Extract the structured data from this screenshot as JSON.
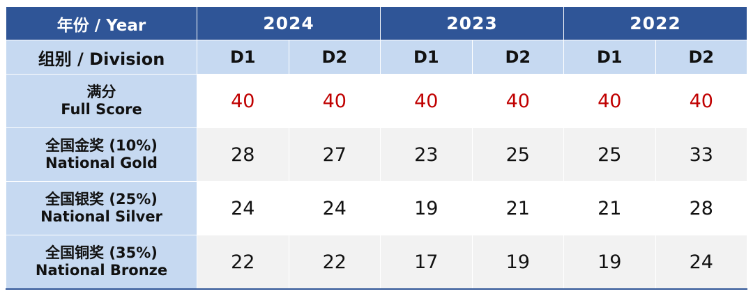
{
  "header": {
    "year_label": "年份 / Year",
    "years": [
      "2024",
      "2023",
      "2022"
    ],
    "division_label": "组别 / Division",
    "divisions": [
      "D1",
      "D2",
      "D1",
      "D2",
      "D1",
      "D2"
    ]
  },
  "rows": [
    {
      "label_cn": "满分",
      "label_en": "Full Score",
      "values": [
        "40",
        "40",
        "40",
        "40",
        "40",
        "40"
      ]
    },
    {
      "label_cn": "全国金奖 (10%)",
      "label_en": "National Gold",
      "values": [
        "28",
        "27",
        "23",
        "25",
        "25",
        "33"
      ]
    },
    {
      "label_cn": "全国银奖 (25%)",
      "label_en": "National Silver",
      "values": [
        "24",
        "24",
        "19",
        "21",
        "21",
        "28"
      ]
    },
    {
      "label_cn": "全国铜奖 (35%)",
      "label_en": "National Bronze",
      "values": [
        "22",
        "22",
        "17",
        "19",
        "19",
        "24"
      ]
    }
  ],
  "colors": {
    "header": "#2F5597",
    "label_bg": "#C6D9F1",
    "stripe": "#F2F2F2",
    "full_score": "#C00000"
  }
}
